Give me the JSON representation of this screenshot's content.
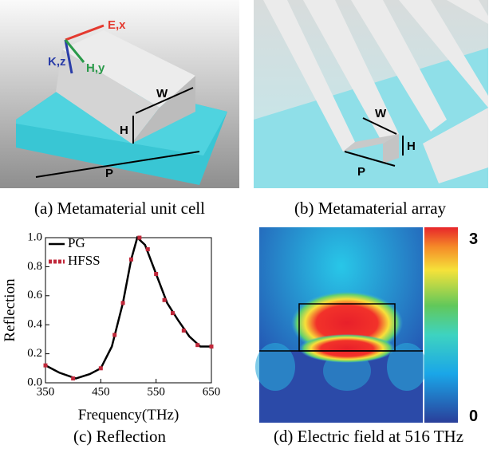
{
  "panels": {
    "unit_cell": {
      "caption": "(a) Metamaterial unit cell",
      "labels": [
        "E,x",
        "K,z",
        "H,y",
        "W",
        "H",
        "P"
      ]
    },
    "array": {
      "caption": "(b) Metamaterial array",
      "labels": [
        "W",
        "H",
        "P"
      ]
    },
    "field": {
      "caption": "(d) Electric field at 516 THz",
      "colorbar_max": 3,
      "colorbar_min": 0
    }
  },
  "chart_data": {
    "type": "line",
    "caption": "(c) Reflection",
    "x_label": "Frequency(THz)",
    "y_label": "Reflection",
    "xlim": [
      350,
      650
    ],
    "xticks": [
      350,
      450,
      550,
      650
    ],
    "ylim": [
      0,
      1
    ],
    "yticks": [
      {
        "value": 0,
        "label": "0.0"
      },
      {
        "value": 0.2,
        "label": "0.2"
      },
      {
        "value": 0.4,
        "label": "0.4"
      },
      {
        "value": 0.6,
        "label": "0.6"
      },
      {
        "value": 0.8,
        "label": "0.8"
      },
      {
        "value": 1,
        "label": "1.0"
      }
    ],
    "series": [
      {
        "name": "PG",
        "color": "#000000",
        "style": "line",
        "x": [
          350,
          375,
          405,
          430,
          450,
          470,
          490,
          505,
          516,
          530,
          550,
          570,
          590,
          610,
          630,
          650
        ],
        "values": [
          0.12,
          0.07,
          0.03,
          0.06,
          0.1,
          0.25,
          0.55,
          0.85,
          1.0,
          0.95,
          0.75,
          0.55,
          0.43,
          0.32,
          0.25,
          0.25
        ]
      },
      {
        "name": "HFSS",
        "color": "#c0283a",
        "style": "markers",
        "x": [
          350,
          400,
          450,
          475,
          490,
          505,
          520,
          535,
          550,
          565,
          580,
          600,
          625,
          650
        ],
        "values": [
          0.12,
          0.03,
          0.1,
          0.33,
          0.55,
          0.85,
          1.0,
          0.92,
          0.75,
          0.57,
          0.48,
          0.36,
          0.26,
          0.25
        ]
      }
    ]
  }
}
